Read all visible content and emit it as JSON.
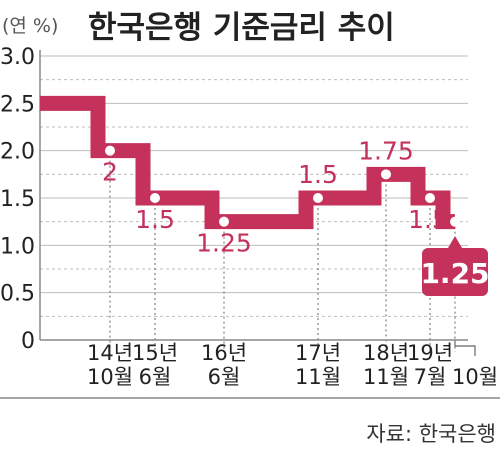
{
  "title": "한국은행 기준금리 추이",
  "unit_label": "(연 %)",
  "source": "자료: 한국은행",
  "colors": {
    "line": "#c4315a",
    "text": "#222222",
    "grid": "#bdbdbd",
    "axis": "#888888"
  },
  "chart_data": {
    "type": "line",
    "step": true,
    "ylim": [
      0,
      3.0
    ],
    "yticks": [
      "0",
      "0.5",
      "1.0",
      "1.5",
      "2.0",
      "2.5",
      "3.0"
    ],
    "grid": true,
    "x_axis_labels": [
      {
        "top": "14년",
        "bottom": "10월"
      },
      {
        "top": "15년",
        "bottom": "6월"
      },
      {
        "top": "16년",
        "bottom": "6월"
      },
      {
        "top": "17년",
        "bottom": "11월"
      },
      {
        "top": "18년",
        "bottom": "11월"
      },
      {
        "top": "19년",
        "bottom": "7월"
      },
      {
        "top": "",
        "bottom": "10월"
      }
    ],
    "points": [
      {
        "x": "14년 10월",
        "y": 2.0,
        "label": "2"
      },
      {
        "x": "15년 6월",
        "y": 1.5,
        "label": "1.5"
      },
      {
        "x": "16년 6월",
        "y": 1.25,
        "label": "1.25"
      },
      {
        "x": "17년 11월",
        "y": 1.5,
        "label": "1.5"
      },
      {
        "x": "18년 11월",
        "y": 1.75,
        "label": "1.75"
      },
      {
        "x": "19년 7월",
        "y": 1.5,
        "label": "1.5"
      },
      {
        "x": "10월",
        "y": 1.25,
        "label": "1.25",
        "highlight": true
      }
    ],
    "start_value": 2.5
  }
}
